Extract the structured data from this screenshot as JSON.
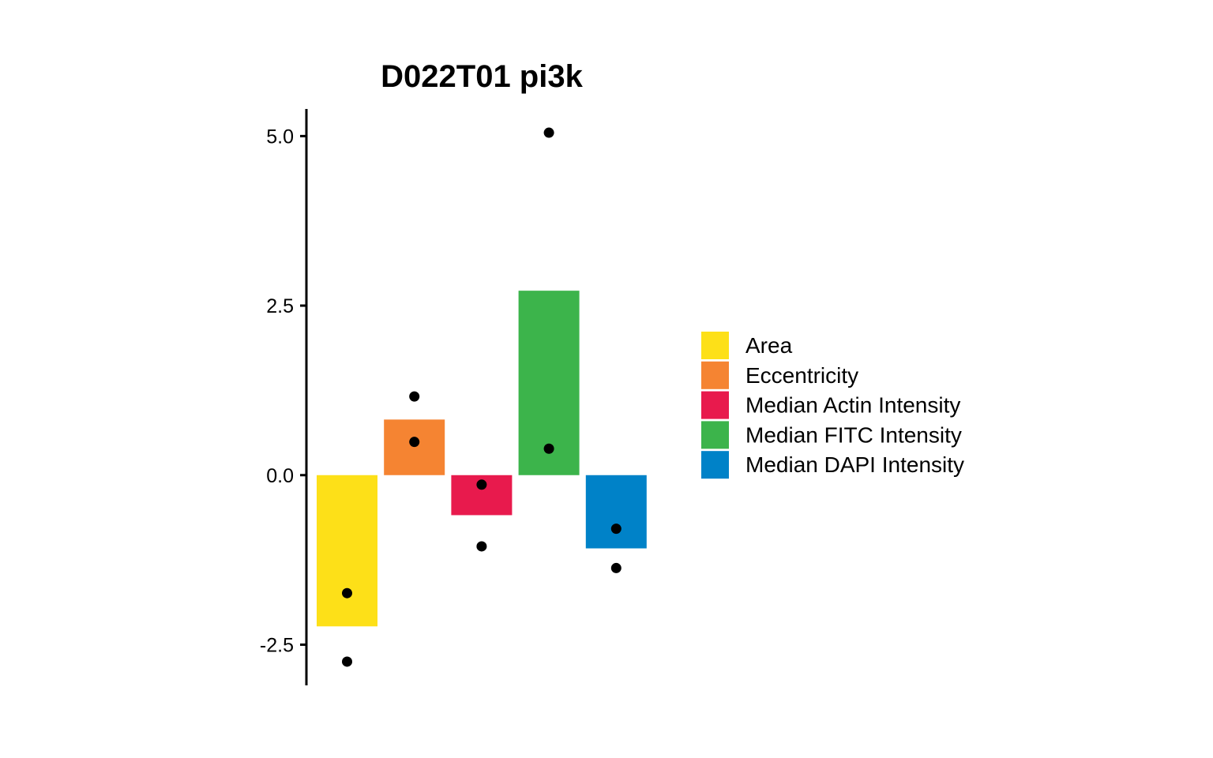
{
  "chart_data": {
    "type": "bar",
    "title": "D022T01 pi3k",
    "xlabel": "",
    "ylabel": "",
    "ylim": [
      -3.1,
      5.4
    ],
    "yticks": [
      -2.5,
      0.0,
      2.5,
      5.0
    ],
    "ytick_labels": [
      "-2.5",
      "0.0",
      "2.5",
      "5.0"
    ],
    "categories": [
      "Area",
      "Eccentricity",
      "Median Actin Intensity",
      "Median FITC Intensity",
      "Median DAPI Intensity"
    ],
    "values": [
      -2.23,
      0.82,
      -0.59,
      2.72,
      -1.08
    ],
    "colors": [
      "#FDE018",
      "#F58432",
      "#E81A4D",
      "#3CB44B",
      "#0082C8"
    ],
    "points": [
      [
        -1.74,
        -2.75
      ],
      [
        1.16,
        0.49
      ],
      [
        -0.14,
        -1.05
      ],
      [
        5.05,
        0.39
      ],
      [
        -0.79,
        -1.37
      ]
    ],
    "legend": {
      "position": "right",
      "entries": [
        "Area",
        "Eccentricity",
        "Median Actin Intensity",
        "Median FITC Intensity",
        "Median DAPI Intensity"
      ]
    },
    "grid": false
  }
}
